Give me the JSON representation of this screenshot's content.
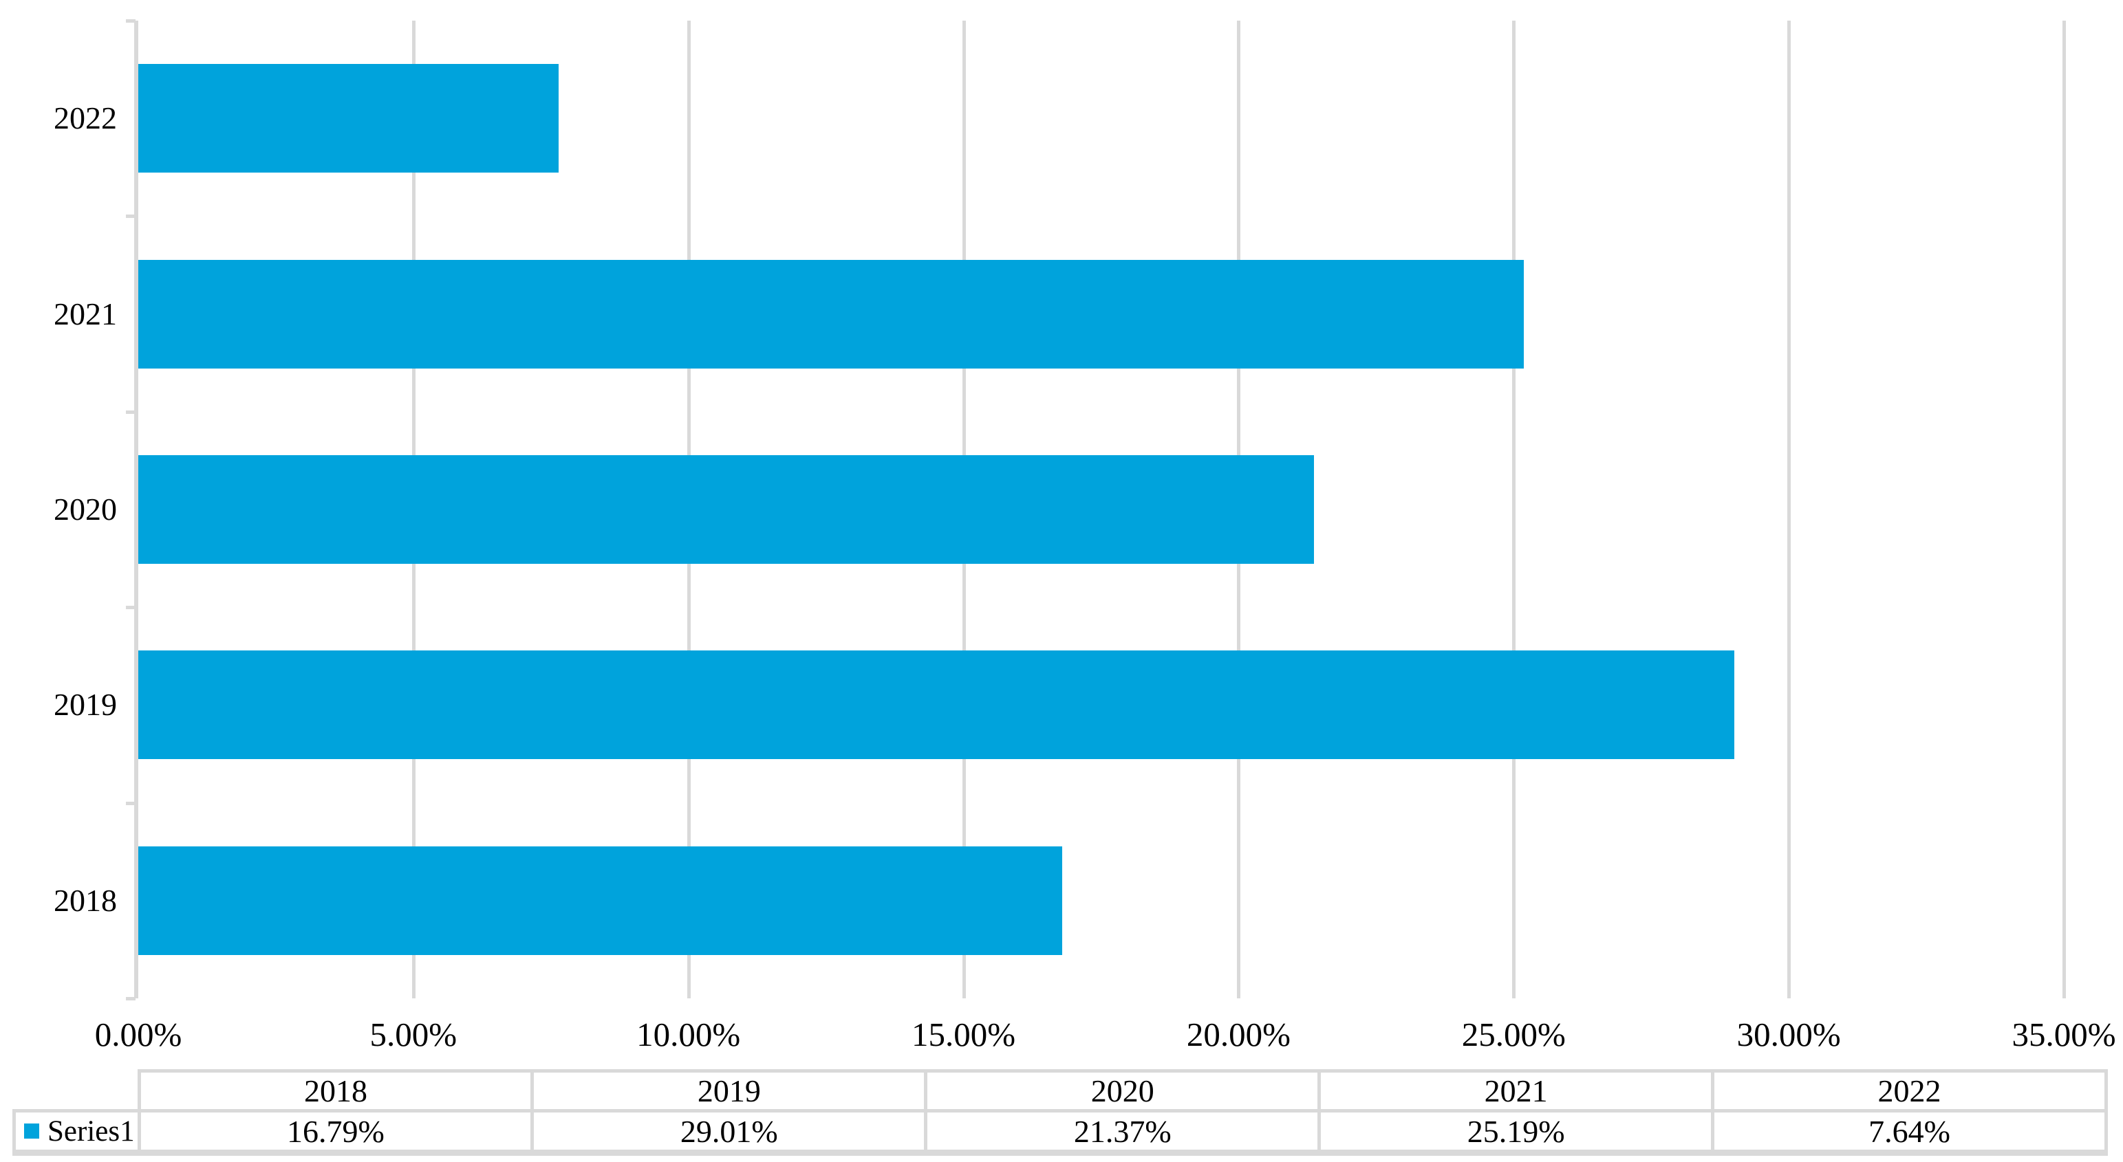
{
  "chart_data": {
    "type": "bar",
    "orientation": "horizontal",
    "title": "",
    "xlabel": "",
    "ylabel": "",
    "categories": [
      "2018",
      "2019",
      "2020",
      "2021",
      "2022"
    ],
    "series": [
      {
        "name": "Series1",
        "values": [
          16.79,
          29.01,
          21.37,
          25.19,
          7.64
        ]
      }
    ],
    "category_axis_order_top_to_bottom": [
      "2022",
      "2021",
      "2020",
      "2019",
      "2018"
    ],
    "value_axis": {
      "min": 0,
      "max": 35,
      "step": 5,
      "tick_labels": [
        "0.00%",
        "5.00%",
        "10.00%",
        "15.00%",
        "20.00%",
        "25.00%",
        "30.00%",
        "35.00%"
      ]
    },
    "grid": true,
    "gridlines": "vertical-major",
    "legend_position": "data-table-left",
    "data_table": {
      "legend_label": "Series1",
      "columns": [
        "2018",
        "2019",
        "2020",
        "2021",
        "2022"
      ],
      "values": [
        "16.79%",
        "29.01%",
        "21.37%",
        "25.19%",
        "7.64%"
      ]
    },
    "colors": {
      "bar": "#00A3DC",
      "gridline": "#D9D9D9",
      "axis": "#D9D9D9",
      "table_border": "#D9D9D9",
      "text": "#000000",
      "background": "#FFFFFF"
    }
  }
}
